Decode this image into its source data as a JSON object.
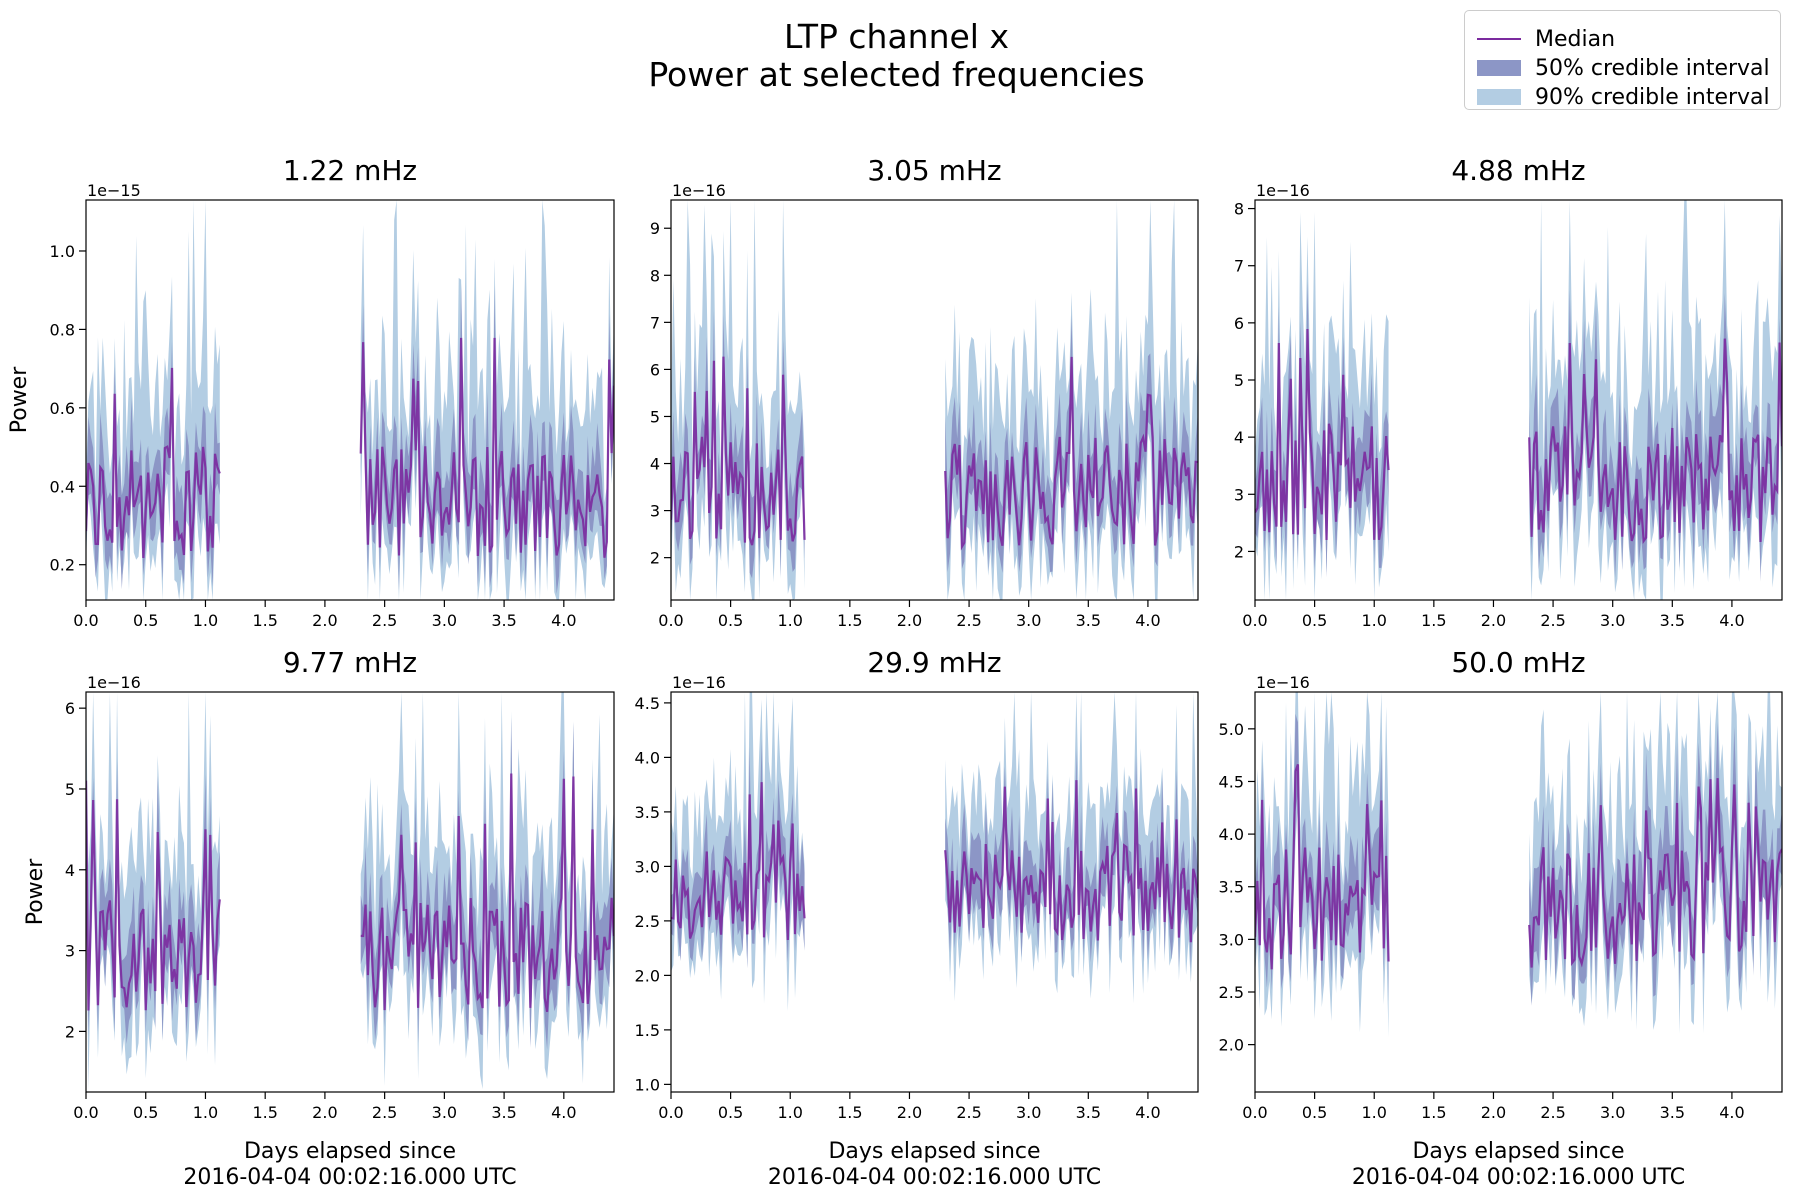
{
  "figure": {
    "title_line1": "LTP channel x",
    "title_line2": "Power at selected frequencies"
  },
  "legend": {
    "placement": "top-right",
    "items": [
      {
        "label": "Median",
        "kind": "line",
        "color": "#7b2a9e"
      },
      {
        "label": "50% credible interval",
        "kind": "patch",
        "color": "#8c96c6"
      },
      {
        "label": "90% credible interval",
        "kind": "patch",
        "color": "#b3cde3"
      }
    ]
  },
  "colors": {
    "median": "#7b2a9e",
    "ci50": "#8c96c6",
    "ci90": "#b3cde3"
  },
  "chart_data": [
    {
      "type": "line",
      "title": "1.22 mHz",
      "ylabel": "Power",
      "xlabel_line1": "",
      "xlabel_line2": "",
      "offset_text": "1e−15",
      "xlim": [
        0,
        4.42
      ],
      "ylim": [
        0.11,
        1.13
      ],
      "xticks": [
        0.0,
        0.5,
        1.0,
        1.5,
        2.0,
        2.5,
        3.0,
        3.5,
        4.0
      ],
      "xtick_labels": [
        "0.0",
        "0.5",
        "1.0",
        "1.5",
        "2.0",
        "2.5",
        "3.0",
        "3.5",
        "4.0"
      ],
      "yticks": [
        0.2,
        0.4,
        0.6,
        0.8,
        1.0
      ],
      "ytick_labels": [
        "0.2",
        "0.4",
        "0.6",
        "0.8",
        "1.0"
      ],
      "segments": [
        [
          0.0,
          1.12
        ],
        [
          2.3,
          4.42
        ]
      ],
      "median_level": 0.36,
      "spread50": 0.11,
      "spread90": 0.22,
      "spike": 0.78,
      "seed": 11,
      "grid": false
    },
    {
      "type": "line",
      "title": "3.05 mHz",
      "ylabel": "",
      "xlabel_line1": "",
      "xlabel_line2": "",
      "offset_text": "1e−16",
      "xlim": [
        0,
        4.42
      ],
      "ylim": [
        1.1,
        9.6
      ],
      "xticks": [
        0.0,
        0.5,
        1.0,
        1.5,
        2.0,
        2.5,
        3.0,
        3.5,
        4.0
      ],
      "xtick_labels": [
        "0.0",
        "0.5",
        "1.0",
        "1.5",
        "2.0",
        "2.5",
        "3.0",
        "3.5",
        "4.0"
      ],
      "yticks": [
        2,
        3,
        4,
        5,
        6,
        7,
        8,
        9
      ],
      "ytick_labels": [
        "2",
        "3",
        "4",
        "5",
        "6",
        "7",
        "8",
        "9"
      ],
      "segments": [
        [
          0.0,
          1.12
        ],
        [
          2.3,
          4.42
        ]
      ],
      "median_level": 3.4,
      "spread50": 0.9,
      "spread90": 1.9,
      "spike": 6.8,
      "seed": 23,
      "grid": false
    },
    {
      "type": "line",
      "title": "4.88 mHz",
      "ylabel": "",
      "xlabel_line1": "",
      "xlabel_line2": "",
      "offset_text": "1e−16",
      "xlim": [
        0,
        4.42
      ],
      "ylim": [
        1.15,
        8.15
      ],
      "xticks": [
        0.0,
        0.5,
        1.0,
        1.5,
        2.0,
        2.5,
        3.0,
        3.5,
        4.0
      ],
      "xtick_labels": [
        "0.0",
        "0.5",
        "1.0",
        "1.5",
        "2.0",
        "2.5",
        "3.0",
        "3.5",
        "4.0"
      ],
      "yticks": [
        2,
        3,
        4,
        5,
        6,
        7,
        8
      ],
      "ytick_labels": [
        "2",
        "3",
        "4",
        "5",
        "6",
        "7",
        "8"
      ],
      "segments": [
        [
          0.0,
          1.12
        ],
        [
          2.3,
          4.42
        ]
      ],
      "median_level": 3.2,
      "spread50": 0.8,
      "spread90": 1.6,
      "spike": 5.9,
      "seed": 37,
      "grid": false
    },
    {
      "type": "line",
      "title": "9.77 mHz",
      "ylabel": "Power",
      "xlabel_line1": "Days elapsed since",
      "xlabel_line2": "2016-04-04 00:02:16.000 UTC",
      "offset_text": "1e−16",
      "xlim": [
        0,
        4.42
      ],
      "ylim": [
        1.25,
        6.2
      ],
      "xticks": [
        0.0,
        0.5,
        1.0,
        1.5,
        2.0,
        2.5,
        3.0,
        3.5,
        4.0
      ],
      "xtick_labels": [
        "0.0",
        "0.5",
        "1.0",
        "1.5",
        "2.0",
        "2.5",
        "3.0",
        "3.5",
        "4.0"
      ],
      "yticks": [
        2,
        3,
        4,
        5,
        6
      ],
      "ytick_labels": [
        "2",
        "3",
        "4",
        "5",
        "6"
      ],
      "segments": [
        [
          0.0,
          1.12
        ],
        [
          2.3,
          4.42
        ]
      ],
      "median_level": 2.95,
      "spread50": 0.55,
      "spread90": 1.1,
      "spike": 5.2,
      "seed": 41,
      "grid": false
    },
    {
      "type": "line",
      "title": "29.9 mHz",
      "ylabel": "",
      "xlabel_line1": "Days elapsed since",
      "xlabel_line2": "2016-04-04 00:02:16.000 UTC",
      "offset_text": "1e−16",
      "xlim": [
        0,
        4.42
      ],
      "ylim": [
        0.93,
        4.6
      ],
      "xticks": [
        0.0,
        0.5,
        1.0,
        1.5,
        2.0,
        2.5,
        3.0,
        3.5,
        4.0
      ],
      "xtick_labels": [
        "0.0",
        "0.5",
        "1.0",
        "1.5",
        "2.0",
        "2.5",
        "3.0",
        "3.5",
        "4.0"
      ],
      "yticks": [
        1.0,
        1.5,
        2.0,
        2.5,
        3.0,
        3.5,
        4.0,
        4.5
      ],
      "ytick_labels": [
        "1.0",
        "1.5",
        "2.0",
        "2.5",
        "3.0",
        "3.5",
        "4.0",
        "4.5"
      ],
      "segments": [
        [
          0.0,
          1.12
        ],
        [
          2.3,
          4.42
        ]
      ],
      "median_level": 2.75,
      "spread50": 0.35,
      "spread90": 0.7,
      "spike": 3.8,
      "seed": 53,
      "grid": false
    },
    {
      "type": "line",
      "title": "50.0 mHz",
      "ylabel": "",
      "xlabel_line1": "Days elapsed since",
      "xlabel_line2": "2016-04-04 00:02:16.000 UTC",
      "offset_text": "1e−16",
      "xlim": [
        0,
        4.42
      ],
      "ylim": [
        1.55,
        5.35
      ],
      "xticks": [
        0.0,
        0.5,
        1.0,
        1.5,
        2.0,
        2.5,
        3.0,
        3.5,
        4.0
      ],
      "xtick_labels": [
        "0.0",
        "0.5",
        "1.0",
        "1.5",
        "2.0",
        "2.5",
        "3.0",
        "3.5",
        "4.0"
      ],
      "yticks": [
        2.0,
        2.5,
        3.0,
        3.5,
        4.0,
        4.5,
        5.0
      ],
      "ytick_labels": [
        "2.0",
        "2.5",
        "3.0",
        "3.5",
        "4.0",
        "4.5",
        "5.0"
      ],
      "segments": [
        [
          0.0,
          1.12
        ],
        [
          2.3,
          4.42
        ]
      ],
      "median_level": 3.3,
      "spread50": 0.45,
      "spread90": 0.85,
      "spike": 4.7,
      "seed": 67,
      "grid": false
    }
  ]
}
